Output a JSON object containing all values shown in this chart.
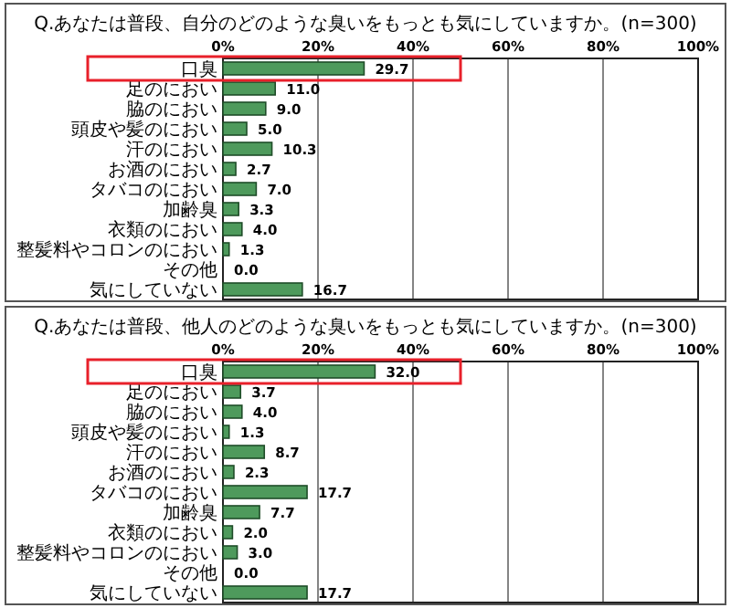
{
  "chart_data": [
    {
      "type": "bar",
      "orientation": "horizontal",
      "title": "Q.あなたは普段、自分のどのような臭いをもっとも気にしていますか。(n=300)",
      "categories": [
        "口臭",
        "足のにおい",
        "脇のにおい",
        "頭皮や髪のにおい",
        "汗のにおい",
        "お酒のにおい",
        "タバコのにおい",
        "加齢臭",
        "衣類のにおい",
        "整髪料やコロンのにおい",
        "その他",
        "気にしていない"
      ],
      "values": [
        29.7,
        11.0,
        9.0,
        5.0,
        10.3,
        2.7,
        7.0,
        3.3,
        4.0,
        1.3,
        0.0,
        16.7
      ],
      "value_labels": [
        "29.7",
        "11.0",
        "9.0",
        "5.0",
        "10.3",
        "2.7",
        "7.0",
        "3.3",
        "4.0",
        "1.3",
        "0.0",
        "16.7"
      ],
      "color": "#4e9a5c",
      "xlim": [
        0,
        100
      ],
      "xticks": [
        {
          "value": 0,
          "label": "0%"
        },
        {
          "value": 20,
          "label": "20%"
        },
        {
          "value": 40,
          "label": "40%"
        },
        {
          "value": 60,
          "label": "60%"
        },
        {
          "value": 80,
          "label": "80%"
        },
        {
          "value": 100,
          "label": "100%"
        }
      ],
      "grid": "x"
    },
    {
      "type": "bar",
      "orientation": "horizontal",
      "title": "Q.あなたは普段、他人のどのような臭いをもっとも気にしていますか。(n=300)",
      "categories": [
        "口臭",
        "足のにおい",
        "脇のにおい",
        "頭皮や髪のにおい",
        "汗のにおい",
        "お酒のにおい",
        "タバコのにおい",
        "加齢臭",
        "衣類のにおい",
        "整髪料やコロンのにおい",
        "その他",
        "気にしていない"
      ],
      "values": [
        32.0,
        3.7,
        4.0,
        1.3,
        8.7,
        2.3,
        17.7,
        7.7,
        2.0,
        3.0,
        0.0,
        17.7
      ],
      "value_labels": [
        "32.0",
        "3.7",
        "4.0",
        "1.3",
        "8.7",
        "2.3",
        "17.7",
        "7.7",
        "2.0",
        "3.0",
        "0.0",
        "17.7"
      ],
      "color": "#4e9a5c",
      "xlim": [
        0,
        100
      ],
      "xticks": [
        {
          "value": 0,
          "label": "0%"
        },
        {
          "value": 20,
          "label": "20%"
        },
        {
          "value": 40,
          "label": "40%"
        },
        {
          "value": 60,
          "label": "60%"
        },
        {
          "value": 80,
          "label": "80%"
        },
        {
          "value": 100,
          "label": "100%"
        }
      ],
      "grid": "x"
    }
  ]
}
